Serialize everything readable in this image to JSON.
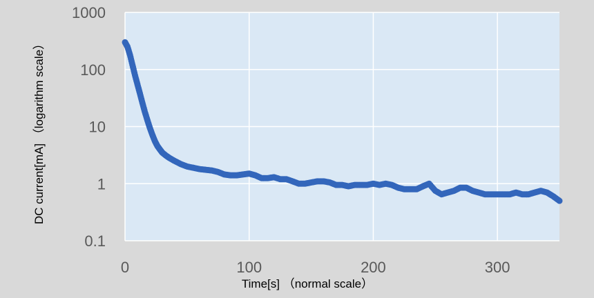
{
  "chart_data": {
    "type": "scatter",
    "xlabel": "Time[s] （normal scale）",
    "ylabel": "DC current[mA] （logarithm scale）",
    "xlim": [
      0,
      350
    ],
    "ylim": [
      0.1,
      1000
    ],
    "y_scale": "log",
    "x_ticks": [
      "0",
      "100",
      "200",
      "300"
    ],
    "x_tick_values": [
      0,
      100,
      200,
      300
    ],
    "y_ticks": [
      "0.1",
      "1",
      "10",
      "100",
      "1000"
    ],
    "y_tick_values": [
      0.1,
      1,
      10,
      100,
      1000
    ],
    "grid": true,
    "colors": {
      "background": "#d9d9d9",
      "plot_area": "#dae8f5",
      "gridline": "#ffffff",
      "marker": "#3366bb"
    },
    "series": [
      {
        "x": [
          0,
          2,
          4,
          6,
          8,
          10,
          12,
          14,
          16,
          18,
          20,
          22,
          24,
          26,
          28,
          30,
          33,
          36,
          40,
          45,
          50,
          55,
          60,
          65,
          70,
          75,
          80,
          85,
          90,
          95,
          100,
          105,
          110,
          115,
          120,
          125,
          130,
          135,
          140,
          145,
          150,
          155,
          160,
          165,
          170,
          175,
          180,
          185,
          190,
          195,
          200,
          205,
          210,
          215,
          220,
          225,
          230,
          235,
          240,
          245,
          250,
          255,
          260,
          265,
          270,
          275,
          280,
          285,
          290,
          295,
          300,
          305,
          310,
          315,
          320,
          325,
          330,
          335,
          340,
          345,
          350
        ],
        "y": [
          300,
          250,
          180,
          120,
          80,
          55,
          38,
          26,
          18,
          13,
          9.5,
          7.2,
          5.6,
          4.6,
          4.0,
          3.5,
          3.1,
          2.8,
          2.5,
          2.2,
          2.0,
          1.9,
          1.8,
          1.75,
          1.7,
          1.6,
          1.45,
          1.4,
          1.4,
          1.45,
          1.5,
          1.4,
          1.25,
          1.25,
          1.3,
          1.2,
          1.2,
          1.1,
          1.0,
          1.0,
          1.05,
          1.1,
          1.1,
          1.05,
          0.95,
          0.95,
          0.9,
          0.95,
          0.95,
          0.95,
          1.0,
          0.95,
          1.0,
          0.95,
          0.85,
          0.8,
          0.8,
          0.8,
          0.9,
          1.0,
          0.75,
          0.65,
          0.7,
          0.75,
          0.85,
          0.85,
          0.75,
          0.7,
          0.65,
          0.65,
          0.65,
          0.65,
          0.65,
          0.7,
          0.65,
          0.65,
          0.7,
          0.75,
          0.7,
          0.6,
          0.5
        ]
      }
    ]
  }
}
